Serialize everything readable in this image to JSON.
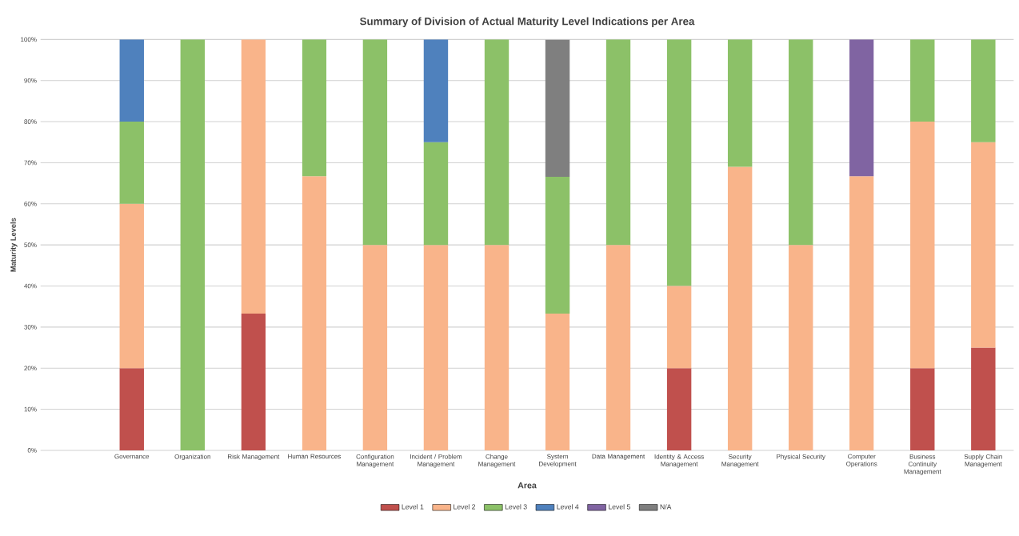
{
  "chart_data": {
    "type": "bar",
    "stacked": true,
    "title": "Summary of Division of Actual Maturity Level Indications per Area",
    "xlabel": "Area",
    "ylabel": "Maturity Levels",
    "categories": [
      null,
      "Governance",
      "Organization",
      "Risk Management",
      "Human Resources",
      "Configuration Management",
      "Incident / Problem Management",
      "Change Management",
      "System Development",
      "Data Management",
      "Identity & Access Management",
      "Security Management",
      "Physical Security",
      "Computer Operations",
      "Business Continuity Management",
      "Supply Chain Management"
    ],
    "series": [
      {
        "name": "Level 1",
        "color": "#c0504d",
        "values": [
          null,
          20,
          null,
          33.3,
          null,
          null,
          null,
          null,
          null,
          null,
          20,
          null,
          null,
          null,
          20,
          25
        ]
      },
      {
        "name": "Level 2",
        "color": "#f9b48a",
        "values": [
          null,
          40,
          null,
          66.7,
          66.7,
          50,
          50,
          50,
          33.3,
          50,
          20,
          69,
          50,
          66.7,
          60,
          50
        ]
      },
      {
        "name": "Level 3",
        "color": "#8cc168",
        "values": [
          null,
          20,
          100,
          null,
          33.3,
          50,
          25,
          50,
          33.3,
          50,
          60,
          31,
          50,
          null,
          20,
          25
        ]
      },
      {
        "name": "Level 4",
        "color": "#4f81bd",
        "values": [
          null,
          20,
          null,
          null,
          null,
          null,
          25,
          null,
          null,
          null,
          null,
          null,
          null,
          null,
          null,
          null
        ]
      },
      {
        "name": "Level 5",
        "color": "#8064a2",
        "values": [
          null,
          null,
          null,
          null,
          null,
          null,
          null,
          null,
          null,
          null,
          null,
          null,
          null,
          33.3,
          null,
          null
        ]
      },
      {
        "name": "N/A",
        "color": "#7f7f7f",
        "values": [
          null,
          null,
          null,
          null,
          null,
          null,
          null,
          null,
          33.3,
          null,
          null,
          null,
          null,
          null,
          null,
          null
        ]
      }
    ],
    "ylim": [
      0,
      100
    ],
    "yticks": [
      {
        "value": 0,
        "label": "0%"
      },
      {
        "value": 10,
        "label": "10%"
      },
      {
        "value": 20,
        "label": "20%"
      },
      {
        "value": 30,
        "label": "30%"
      },
      {
        "value": 40,
        "label": "40%"
      },
      {
        "value": 50,
        "label": "50%"
      },
      {
        "value": 60,
        "label": "60%"
      },
      {
        "value": 70,
        "label": "70%"
      },
      {
        "value": 80,
        "label": "80%"
      },
      {
        "value": 90,
        "label": "90%"
      },
      {
        "value": 100,
        "label": "100%"
      }
    ],
    "grid": "y",
    "legend": "bottom"
  }
}
